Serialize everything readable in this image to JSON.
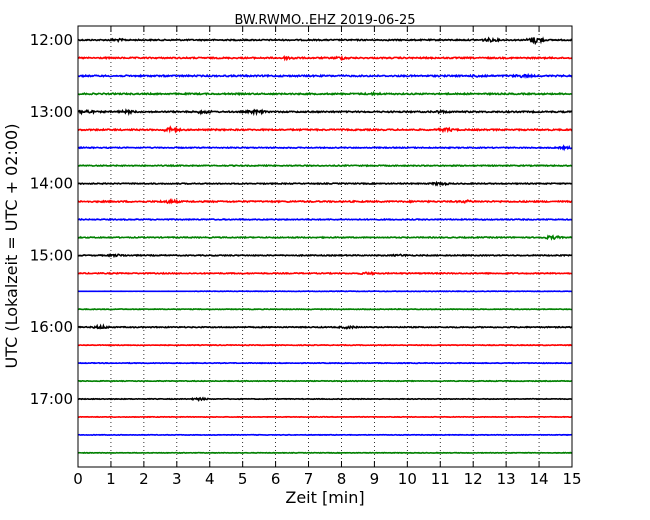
{
  "chart_data": {
    "type": "line",
    "title": "BW.RWMO..EHZ 2019-06-25",
    "xlabel": "Zeit  [min]",
    "ylabel": "UTC (Lokalzeit = UTC + 02:00)",
    "xlim": [
      0,
      15
    ],
    "x_ticks": [
      "0",
      "1",
      "2",
      "3",
      "4",
      "5",
      "6",
      "7",
      "8",
      "9",
      "10",
      "11",
      "12",
      "13",
      "14",
      "15"
    ],
    "y_tick_labels": [
      "12:00",
      "13:00",
      "14:00",
      "15:00",
      "16:00",
      "17:00"
    ],
    "y_tick_trace_index": [
      0,
      4,
      8,
      12,
      16,
      20
    ],
    "grid": "vertical dotted at each minute",
    "colors": [
      "#000000",
      "#ff0000",
      "#0000ff",
      "#008000"
    ],
    "trace_interval_min": 15,
    "traces": [
      {
        "start": "12:00",
        "color": "#000000",
        "events": [
          [
            1.2,
            0.25
          ],
          [
            12.5,
            0.4
          ],
          [
            13.9,
            1.0
          ]
        ],
        "noise": 0.18
      },
      {
        "start": "12:15",
        "color": "#ff0000",
        "events": [
          [
            6.4,
            0.35
          ],
          [
            8.0,
            0.3
          ]
        ],
        "noise": 0.2
      },
      {
        "start": "12:30",
        "color": "#0000ff",
        "events": [
          [
            12.2,
            0.25
          ],
          [
            13.5,
            0.3
          ]
        ],
        "noise": 0.22
      },
      {
        "start": "12:45",
        "color": "#008000",
        "events": [
          [
            9.0,
            0.2
          ]
        ],
        "noise": 0.2
      },
      {
        "start": "13:00",
        "color": "#000000",
        "events": [
          [
            0.2,
            0.5
          ],
          [
            1.5,
            0.3
          ],
          [
            3.8,
            0.35
          ],
          [
            5.4,
            0.4
          ],
          [
            11.0,
            0.25
          ]
        ],
        "noise": 0.2
      },
      {
        "start": "13:15",
        "color": "#ff0000",
        "events": [
          [
            2.8,
            0.6
          ],
          [
            11.2,
            0.4
          ]
        ],
        "noise": 0.2
      },
      {
        "start": "13:30",
        "color": "#0000ff",
        "events": [
          [
            14.8,
            0.25
          ]
        ],
        "noise": 0.15
      },
      {
        "start": "13:45",
        "color": "#008000",
        "events": [],
        "noise": 0.15
      },
      {
        "start": "14:00",
        "color": "#000000",
        "events": [
          [
            11.0,
            0.35
          ]
        ],
        "noise": 0.15
      },
      {
        "start": "14:15",
        "color": "#ff0000",
        "events": [
          [
            2.8,
            0.35
          ],
          [
            11.8,
            0.25
          ]
        ],
        "noise": 0.2
      },
      {
        "start": "14:30",
        "color": "#0000ff",
        "events": [],
        "noise": 0.15
      },
      {
        "start": "14:45",
        "color": "#008000",
        "events": [
          [
            14.4,
            0.45
          ]
        ],
        "noise": 0.15
      },
      {
        "start": "15:00",
        "color": "#000000",
        "events": [
          [
            1.2,
            0.25
          ],
          [
            9.8,
            0.2
          ]
        ],
        "noise": 0.15
      },
      {
        "start": "15:15",
        "color": "#ff0000",
        "events": [
          [
            8.8,
            0.25
          ]
        ],
        "noise": 0.15
      },
      {
        "start": "15:30",
        "color": "#0000ff",
        "events": [],
        "noise": 0.08,
        "flat_until": 3.5
      },
      {
        "start": "15:45",
        "color": "#008000",
        "events": [],
        "noise": 0.1
      },
      {
        "start": "16:00",
        "color": "#000000",
        "events": [
          [
            0.7,
            0.4
          ],
          [
            8.2,
            0.3
          ]
        ],
        "noise": 0.15
      },
      {
        "start": "16:15",
        "color": "#ff0000",
        "events": [],
        "noise": 0.1
      },
      {
        "start": "16:30",
        "color": "#0000ff",
        "events": [],
        "noise": 0.1
      },
      {
        "start": "16:45",
        "color": "#008000",
        "events": [],
        "noise": 0.1
      },
      {
        "start": "17:00",
        "color": "#000000",
        "events": [
          [
            3.7,
            0.3
          ]
        ],
        "noise": 0.1
      },
      {
        "start": "17:15",
        "color": "#ff0000",
        "events": [],
        "noise": 0.08
      },
      {
        "start": "17:30",
        "color": "#0000ff",
        "events": [],
        "noise": 0.08
      },
      {
        "start": "17:45",
        "color": "#008000",
        "events": [],
        "noise": 0.08
      }
    ]
  }
}
